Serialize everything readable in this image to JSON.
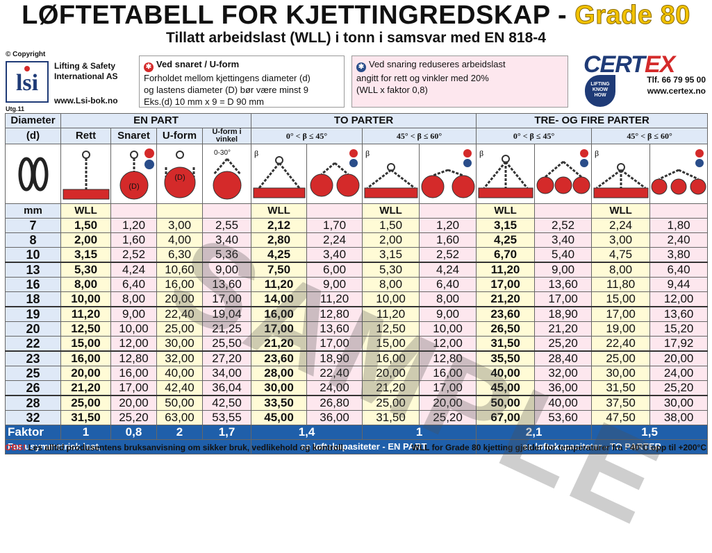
{
  "header": {
    "title_main": "LØFTETABELL FOR KJETTINGREDSKAP - ",
    "title_grade": "Grade 80",
    "subtitle": "Tillatt arbeidslast (WLL) i tonn i samsvar med EN 818-4"
  },
  "lsi": {
    "copyright": "© Copyright",
    "name_line1": "Lifting & Safety",
    "name_line2": "International AS",
    "web": "www.Lsi-bok.no",
    "edition": "Utg.11"
  },
  "note_snared": {
    "heading": "Ved snaret / U-form",
    "line1": "Forholdet mellom kjettingens diameter (d)",
    "line2": "og lastens diameter (D) bør være minst 9",
    "line3": "Eks.(d) 10 mm x 9 = D 90 mm"
  },
  "note_reduce": {
    "line1": "Ved snaring reduseres arbeidslast",
    "line2": "angitt for rett og vinkler med 20%",
    "line3": "(WLL x faktor 0,8)"
  },
  "certex": {
    "brand_a": "CERT",
    "brand_b": "EX",
    "phone": "Tlf. 66 79 95 00",
    "web": "www.certex.no",
    "lkh": "LIFTING KNOW HOW"
  },
  "table": {
    "col_diameter": "Diameter",
    "col_d": "(d)",
    "group_en_part": "EN PART",
    "group_to_parter": "TO PARTER",
    "group_tre_fire": "TRE- OG FIRE PARTER",
    "sub_rett": "Rett",
    "sub_snaret": "Snaret",
    "sub_uform": "U-form",
    "sub_uform_vinkel": "U-form i vinkel",
    "angle_a": "0° < β ≤ 45°",
    "angle_b": "45° < β ≤ 60°",
    "angle_label": "0-30°",
    "mm": "mm",
    "wll": "WLL",
    "rows": [
      [
        "7",
        "1,50",
        "1,20",
        "3,00",
        "2,55",
        "2,12",
        "1,70",
        "1,50",
        "1,20",
        "3,15",
        "2,52",
        "2,24",
        "1,80"
      ],
      [
        "8",
        "2,00",
        "1,60",
        "4,00",
        "3,40",
        "2,80",
        "2,24",
        "2,00",
        "1,60",
        "4,25",
        "3,40",
        "3,00",
        "2,40"
      ],
      [
        "10",
        "3,15",
        "2,52",
        "6,30",
        "5,36",
        "4,25",
        "3,40",
        "3,15",
        "2,52",
        "6,70",
        "5,40",
        "4,75",
        "3,80"
      ],
      [
        "13",
        "5,30",
        "4,24",
        "10,60",
        "9,00",
        "7,50",
        "6,00",
        "5,30",
        "4,24",
        "11,20",
        "9,00",
        "8,00",
        "6,40"
      ],
      [
        "16",
        "8,00",
        "6,40",
        "16,00",
        "13,60",
        "11,20",
        "9,00",
        "8,00",
        "6,40",
        "17,00",
        "13,60",
        "11,80",
        "9,44"
      ],
      [
        "18",
        "10,00",
        "8,00",
        "20,00",
        "17,00",
        "14,00",
        "11,20",
        "10,00",
        "8,00",
        "21,20",
        "17,00",
        "15,00",
        "12,00"
      ],
      [
        "19",
        "11,20",
        "9,00",
        "22,40",
        "19,04",
        "16,00",
        "12,80",
        "11,20",
        "9,00",
        "23,60",
        "18,90",
        "17,00",
        "13,60"
      ],
      [
        "20",
        "12,50",
        "10,00",
        "25,00",
        "21,25",
        "17,00",
        "13,60",
        "12,50",
        "10,00",
        "26,50",
        "21,20",
        "19,00",
        "15,20"
      ],
      [
        "22",
        "15,00",
        "12,00",
        "30,00",
        "25,50",
        "21,20",
        "17,00",
        "15,00",
        "12,00",
        "31,50",
        "25,20",
        "22,40",
        "17,92"
      ],
      [
        "23",
        "16,00",
        "12,80",
        "32,00",
        "27,20",
        "23,60",
        "18,90",
        "16,00",
        "12,80",
        "35,50",
        "28,40",
        "25,00",
        "20,00"
      ],
      [
        "25",
        "20,00",
        "16,00",
        "40,00",
        "34,00",
        "28,00",
        "22,40",
        "20,00",
        "16,00",
        "40,00",
        "32,00",
        "30,00",
        "24,00"
      ],
      [
        "26",
        "21,20",
        "17,00",
        "42,40",
        "36,04",
        "30,00",
        "24,00",
        "21,20",
        "17,00",
        "45,00",
        "36,00",
        "31,50",
        "25,20"
      ],
      [
        "28",
        "25,00",
        "20,00",
        "50,00",
        "42,50",
        "33,50",
        "26,80",
        "25,00",
        "20,00",
        "50,00",
        "40,00",
        "37,50",
        "30,00"
      ],
      [
        "32",
        "31,50",
        "25,20",
        "63,00",
        "53,55",
        "45,00",
        "36,00",
        "31,50",
        "25,20",
        "67,00",
        "53,60",
        "47,50",
        "38,00"
      ]
    ],
    "faktor_label": "Faktor",
    "faktor": [
      "1",
      "0,8",
      "2",
      "1,7",
      "1,4",
      "1",
      "2,1",
      "1,5"
    ],
    "asym_label": "For usymmetrisk last,",
    "asym_en_part": "se løftekapasiteter - EN PART",
    "asym_to_parter": "se løftekapasiteter - TO PARTER"
  },
  "footer": {
    "obs_label": "OBS!",
    "obs_text": " Les alltid produsentens bruksanvisning om sikker bruk, vedlikehold og kontroll.",
    "temp_text": "WLL for Grade 80 kjetting gjelder for temperaturer fra - 40°C opp til +200°C"
  },
  "watermark": "SAMPLE",
  "colors": {
    "accent_blue": "#1f5faa",
    "header_blue": "#dfe9f7",
    "wll_yellow": "#fffbd6",
    "snared_pink": "#fde7ee",
    "red": "#d42a2a",
    "grade_yellow": "#f2c200"
  }
}
